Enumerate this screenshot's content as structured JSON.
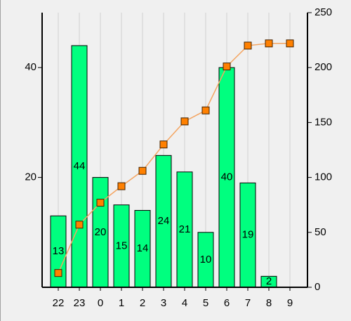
{
  "chart_data": {
    "type": "bar",
    "categories": [
      "22",
      "23",
      "0",
      "1",
      "2",
      "3",
      "4",
      "5",
      "6",
      "7",
      "8",
      "9"
    ],
    "series": [
      {
        "type": "bar",
        "color": "#00ff7f",
        "values": [
          13,
          44,
          20,
          15,
          14,
          24,
          21,
          10,
          40,
          19,
          2,
          null
        ]
      },
      {
        "type": "line",
        "axis": "y2",
        "color": "#f4a460",
        "marker_color": "#ff8000",
        "values": [
          13,
          57,
          77,
          92,
          106,
          130,
          151,
          161,
          201,
          220,
          222,
          222
        ]
      }
    ],
    "ylim": [
      0,
      50
    ],
    "yticks": [
      20,
      40
    ],
    "y2lim": [
      0,
      250
    ],
    "y2ticks": [
      0,
      50,
      100,
      150,
      200,
      250
    ],
    "grid": true
  }
}
